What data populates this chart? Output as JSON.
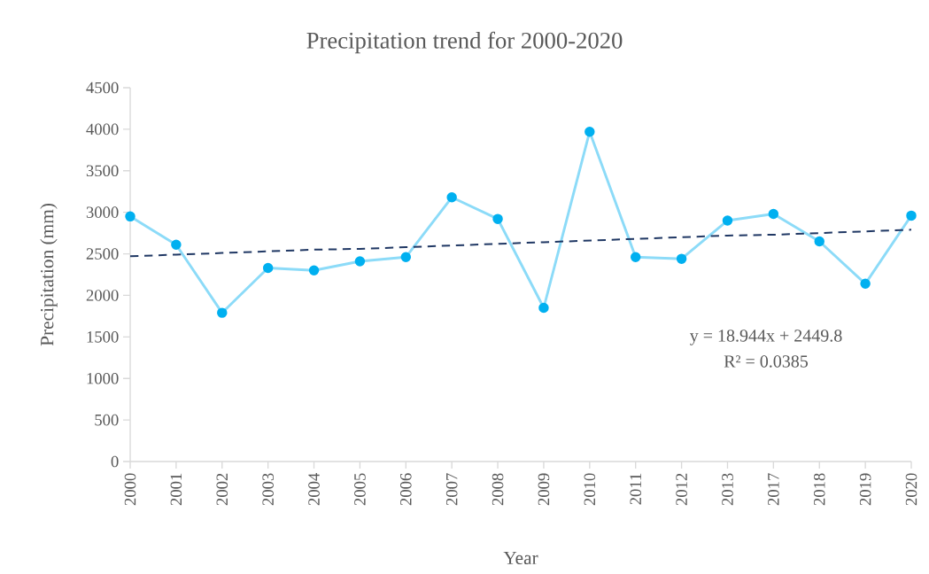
{
  "chart_data": {
    "type": "line",
    "title": "Precipitation trend for 2000-2020",
    "xlabel": "Year",
    "ylabel": "Precipitation (mm)",
    "categories": [
      "2000",
      "2001",
      "2002",
      "2003",
      "2004",
      "2005",
      "2006",
      "2007",
      "2008",
      "2009",
      "2010",
      "2011",
      "2012",
      "2013",
      "2017",
      "2018",
      "2019",
      "2020"
    ],
    "series": [
      {
        "color": "#00b0f0",
        "marker": "circle",
        "line_style": "solid",
        "values": [
          2950,
          2610,
          1790,
          2330,
          2300,
          2410,
          2460,
          3180,
          2920,
          1850,
          3970,
          2460,
          2440,
          2900,
          2980,
          2650,
          2140,
          2960
        ]
      },
      {
        "type": "line",
        "color": "#203864",
        "marker": "none",
        "line_style": "dashed",
        "values": [
          2470,
          2490,
          2510,
          2530,
          2550,
          2560,
          2580,
          2600,
          2620,
          2640,
          2660,
          2680,
          2700,
          2720,
          2730,
          2750,
          2770,
          2790
        ]
      }
    ],
    "ylim": [
      0,
      4500
    ],
    "yticks": [
      0,
      500,
      1000,
      1500,
      2000,
      2500,
      3000,
      3500,
      4000,
      4500
    ],
    "grid": false,
    "annotations": [
      "y = 18.944x + 2449.8",
      "R² = 0.0385"
    ]
  }
}
